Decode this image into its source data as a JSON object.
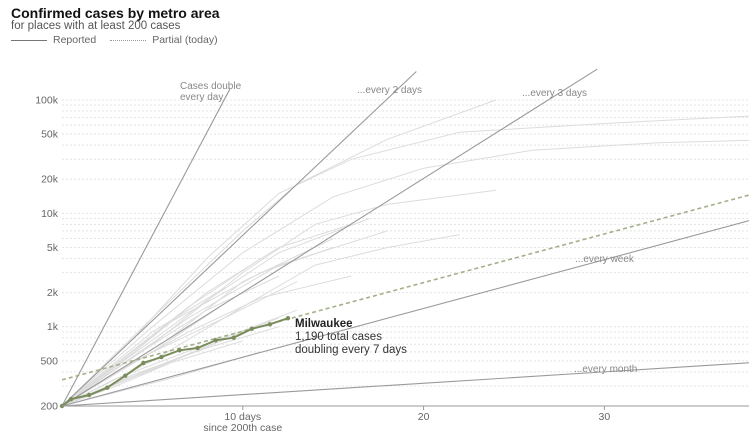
{
  "header": {
    "title": "Confirmed cases by metro area",
    "subtitle": "for places with at least 200 cases",
    "legend_reported": "Reported",
    "legend_partial": "Partial (today)"
  },
  "chart_data": {
    "type": "line",
    "scale_y": "log",
    "ylim": [
      200,
      150000
    ],
    "xlim": [
      0,
      38
    ],
    "y_ticks": [
      {
        "value": 100000,
        "label": "100k"
      },
      {
        "value": 50000,
        "label": "50k"
      },
      {
        "value": 20000,
        "label": "20k"
      },
      {
        "value": 10000,
        "label": "10k"
      },
      {
        "value": 5000,
        "label": "5k"
      },
      {
        "value": 2000,
        "label": "2k"
      },
      {
        "value": 1000,
        "label": "1k"
      },
      {
        "value": 500,
        "label": "500"
      },
      {
        "value": 200,
        "label": "200"
      }
    ],
    "x_ticks": [
      {
        "value": 10,
        "label": "10 days",
        "sublabel": "since 200th case"
      },
      {
        "value": 20,
        "label": "20",
        "sublabel": ""
      },
      {
        "value": 30,
        "label": "30",
        "sublabel": ""
      }
    ],
    "grid": true,
    "guides": [
      {
        "label_lines": [
          "Cases double",
          "every day"
        ],
        "doubling_days": 1
      },
      {
        "label_lines": [
          "...every 2 days"
        ],
        "doubling_days": 2
      },
      {
        "label_lines": [
          "...every 3 days"
        ],
        "doubling_days": 3
      },
      {
        "label_lines": [
          "...every week"
        ],
        "doubling_days": 7
      },
      {
        "label_lines": [
          "...every month"
        ],
        "doubling_days": 30
      }
    ],
    "highlight": {
      "name": "Milwaukee",
      "total_label": "1,190 total cases",
      "doubling_label": "doubling every 7 days",
      "color": "#7a8c5c",
      "x": [
        0,
        0.5,
        1.5,
        2.5,
        3.5,
        4.5,
        5.5,
        6.5,
        7.5,
        8.5,
        9.5,
        10.5,
        11.5,
        12.5
      ],
      "y": [
        200,
        230,
        250,
        290,
        370,
        480,
        540,
        620,
        650,
        760,
        800,
        960,
        1050,
        1190
      ],
      "trend": {
        "x": [
          0,
          38
        ],
        "y": [
          340,
          14500
        ]
      }
    },
    "background_series_color": "#dcdcdc",
    "background_series": [
      [
        [
          0,
          200
        ],
        [
          5,
          1200
        ],
        [
          10,
          7000
        ],
        [
          13,
          18000
        ],
        [
          18,
          45000
        ],
        [
          24,
          100000
        ]
      ],
      [
        [
          0,
          200
        ],
        [
          4,
          800
        ],
        [
          8,
          4000
        ],
        [
          12,
          15000
        ],
        [
          16,
          30000
        ],
        [
          22,
          52000
        ],
        [
          30,
          62000
        ],
        [
          38,
          72000
        ]
      ],
      [
        [
          0,
          200
        ],
        [
          5,
          1000
        ],
        [
          10,
          4500
        ],
        [
          15,
          14000
        ],
        [
          20,
          25000
        ],
        [
          26,
          36000
        ],
        [
          33,
          42000
        ],
        [
          38,
          44000
        ]
      ],
      [
        [
          0,
          200
        ],
        [
          5,
          700
        ],
        [
          10,
          3000
        ],
        [
          14,
          8000
        ],
        [
          18,
          12000
        ],
        [
          24,
          16000
        ]
      ],
      [
        [
          0,
          200
        ],
        [
          4,
          600
        ],
        [
          8,
          2000
        ],
        [
          12,
          5000
        ],
        [
          16,
          8000
        ]
      ],
      [
        [
          0,
          200
        ],
        [
          5,
          500
        ],
        [
          10,
          1500
        ],
        [
          14,
          3500
        ],
        [
          18,
          5000
        ],
        [
          22,
          6500
        ]
      ],
      [
        [
          0,
          200
        ],
        [
          6,
          800
        ],
        [
          10,
          2500
        ],
        [
          15,
          6000
        ]
      ],
      [
        [
          0,
          200
        ],
        [
          4,
          500
        ],
        [
          9,
          1200
        ],
        [
          13,
          2500
        ]
      ],
      [
        [
          0,
          200
        ],
        [
          3,
          400
        ],
        [
          7,
          900
        ],
        [
          11,
          1800
        ],
        [
          16,
          2800
        ]
      ],
      [
        [
          0,
          200
        ],
        [
          5,
          600
        ],
        [
          9,
          1600
        ]
      ],
      [
        [
          0,
          200
        ],
        [
          6,
          500
        ],
        [
          12,
          1200
        ]
      ],
      [
        [
          0,
          200
        ],
        [
          3,
          350
        ],
        [
          8,
          700
        ],
        [
          13,
          1400
        ]
      ],
      [
        [
          0,
          200
        ],
        [
          4,
          380
        ],
        [
          8,
          650
        ],
        [
          12,
          1000
        ]
      ],
      [
        [
          0,
          200
        ],
        [
          5,
          420
        ],
        [
          10,
          900
        ]
      ],
      [
        [
          0,
          200
        ],
        [
          7,
          1500
        ],
        [
          11,
          4000
        ]
      ],
      [
        [
          0,
          200
        ],
        [
          6,
          1100
        ],
        [
          11,
          3000
        ],
        [
          15,
          5000
        ]
      ],
      [
        [
          0,
          200
        ],
        [
          5,
          900
        ],
        [
          9,
          2200
        ]
      ],
      [
        [
          0,
          200
        ],
        [
          4,
          550
        ],
        [
          8,
          1400
        ],
        [
          12,
          2800
        ]
      ],
      [
        [
          0,
          200
        ],
        [
          3,
          300
        ],
        [
          6,
          480
        ],
        [
          10,
          750
        ]
      ],
      [
        [
          0,
          200
        ],
        [
          6,
          350
        ],
        [
          11,
          600
        ]
      ],
      [
        [
          0,
          200
        ],
        [
          8,
          1700
        ],
        [
          12,
          4500
        ],
        [
          17,
          9000
        ]
      ],
      [
        [
          0,
          200
        ],
        [
          7,
          1200
        ],
        [
          12,
          3500
        ],
        [
          18,
          7000
        ]
      ]
    ]
  }
}
